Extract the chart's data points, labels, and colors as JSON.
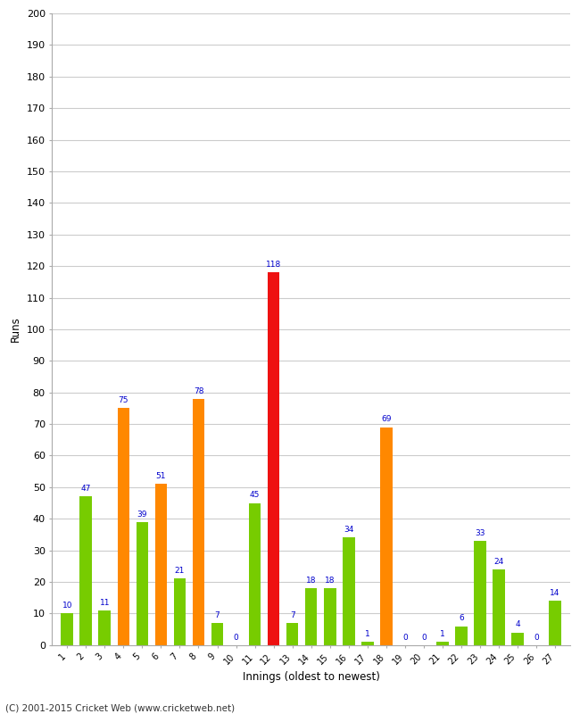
{
  "xlabel": "Innings (oldest to newest)",
  "ylabel": "Runs",
  "ylim": [
    0,
    200
  ],
  "yticks": [
    0,
    10,
    20,
    30,
    40,
    50,
    60,
    70,
    80,
    90,
    100,
    110,
    120,
    130,
    140,
    150,
    160,
    170,
    180,
    190,
    200
  ],
  "innings": [
    1,
    2,
    3,
    4,
    5,
    6,
    7,
    8,
    9,
    10,
    11,
    12,
    13,
    14,
    15,
    16,
    17,
    18,
    19,
    20,
    21,
    22,
    23,
    24,
    25,
    26,
    27
  ],
  "values": [
    10,
    47,
    11,
    75,
    39,
    51,
    21,
    78,
    7,
    0,
    45,
    118,
    7,
    18,
    18,
    34,
    1,
    69,
    0,
    0,
    1,
    6,
    33,
    24,
    4,
    0,
    14
  ],
  "colors": [
    "#77cc00",
    "#77cc00",
    "#77cc00",
    "#ff8800",
    "#77cc00",
    "#ff8800",
    "#77cc00",
    "#ff8800",
    "#77cc00",
    "#77cc00",
    "#77cc00",
    "#ee1111",
    "#77cc00",
    "#77cc00",
    "#77cc00",
    "#77cc00",
    "#77cc00",
    "#ff8800",
    "#77cc00",
    "#77cc00",
    "#77cc00",
    "#77cc00",
    "#77cc00",
    "#77cc00",
    "#77cc00",
    "#77cc00",
    "#77cc00"
  ],
  "label_color": "#0000cc",
  "background_color": "#ffffff",
  "grid_color": "#cccccc",
  "footer": "(C) 2001-2015 Cricket Web (www.cricketweb.net)"
}
